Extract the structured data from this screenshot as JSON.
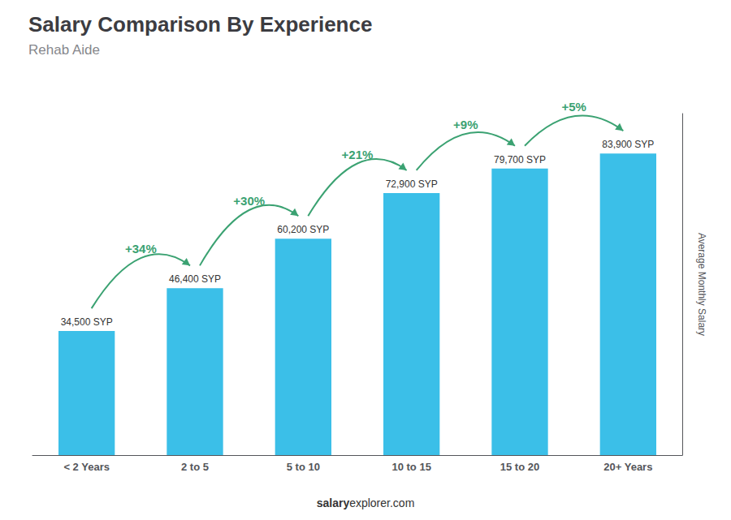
{
  "chart_data": {
    "type": "bar",
    "title": "Salary Comparison By Experience",
    "subtitle": "Rehab Aide",
    "categories": [
      "< 2 Years",
      "2 to 5",
      "5 to 10",
      "10 to 15",
      "15 to 20",
      "20+ Years"
    ],
    "values": [
      34500,
      46400,
      60200,
      72900,
      79700,
      83900
    ],
    "value_labels": [
      "34,500 SYP",
      "46,400 SYP",
      "60,200 SYP",
      "72,900 SYP",
      "79,700 SYP",
      "83,900 SYP"
    ],
    "data_labels": true,
    "color": "#3BBFE8",
    "ylabel": "Average Monthly Salary",
    "ylim": [
      0,
      95000
    ],
    "tick_labels": "x",
    "grid": false,
    "annotations": [
      "+34%",
      "+30%",
      "+21%",
      "+9%",
      "+5%"
    ],
    "footer": [
      "salary",
      "explorer.com"
    ]
  }
}
